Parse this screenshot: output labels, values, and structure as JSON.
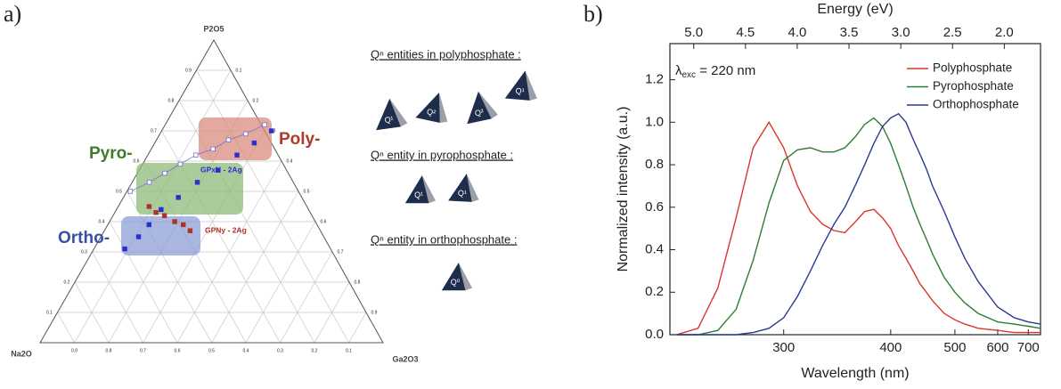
{
  "chart_data": [
    {
      "type": "ternary",
      "panel_label": "a)",
      "axes": {
        "top": "P2O5",
        "left": "Na2O",
        "right": "Ga2O3"
      },
      "ticks": [
        0.1,
        0.2,
        0.3,
        0.4,
        0.5,
        0.6,
        0.7,
        0.8,
        0.9
      ],
      "regions": [
        {
          "label": "Poly-",
          "color": "#d98c7e",
          "label_color": "#b0392a"
        },
        {
          "label": "Pyro-",
          "color": "#8cbb78",
          "label_color": "#3e7d27"
        },
        {
          "label": "Ortho-",
          "color": "#8d9fd6",
          "label_color": "#3c50a3"
        }
      ],
      "series": [
        {
          "color": "#7a6fd8",
          "marker": "open",
          "line": true,
          "P2O5": [
            0.5,
            0.53,
            0.56,
            0.59,
            0.62,
            0.64,
            0.67,
            0.69,
            0.72
          ],
          "Ga2O3": [
            0.01,
            0.05,
            0.08,
            0.11,
            0.14,
            0.18,
            0.21,
            0.25,
            0.29
          ]
        },
        {
          "name": "GPxN - 2Ag",
          "color": "#2a2fd0",
          "marker": "filled",
          "line": false,
          "P2O5": [
            0.7,
            0.66,
            0.62,
            0.57,
            0.53,
            0.48,
            0.44,
            0.39,
            0.35,
            0.31
          ],
          "Ga2O3": [
            0.32,
            0.29,
            0.26,
            0.23,
            0.19,
            0.16,
            0.13,
            0.12,
            0.11,
            0.09
          ]
        },
        {
          "name": "GPNy - 2Ag",
          "color": "#b0302a",
          "marker": "filled",
          "line": false,
          "P2O5": [
            0.45,
            0.43,
            0.42,
            0.4,
            0.39,
            0.37
          ],
          "Ga2O3": [
            0.09,
            0.12,
            0.15,
            0.19,
            0.22,
            0.25
          ]
        }
      ]
    },
    {
      "type": "line",
      "panel_label": "b)",
      "xlabel": "Wavelength (nm)",
      "x2label": "Energy (eV)",
      "ylabel": "Normalized intensity (a.u.)",
      "annotation": {
        "symbol": "λ",
        "subscript": "exc",
        "text": " = 220 nm"
      },
      "xscale": "reciprocal",
      "xlim": [
        237,
        750
      ],
      "xticks": [
        300,
        400,
        500,
        600,
        700
      ],
      "x2lim": [
        5.23,
        1.65
      ],
      "x2ticks": [
        {
          "value": 5,
          "label": "5.0"
        },
        4.5,
        {
          "value": 4,
          "label": "4.0"
        },
        3.5,
        {
          "value": 3,
          "label": "3.0"
        },
        2.5,
        {
          "value": 2,
          "label": "2.0"
        }
      ],
      "ylim": [
        0,
        1.37
      ],
      "yticks": [
        {
          "value": 0,
          "label": "0.0"
        },
        0.2,
        0.4,
        0.6,
        0.8,
        {
          "value": 1,
          "label": "1.0"
        },
        1.2
      ],
      "legend": "upper right",
      "x": [
        240,
        250,
        260,
        270,
        280,
        290,
        300,
        310,
        320,
        330,
        340,
        350,
        360,
        370,
        380,
        390,
        400,
        410,
        420,
        430,
        440,
        450,
        460,
        480,
        500,
        520,
        550,
        600,
        650,
        700,
        750
      ],
      "series": [
        {
          "name": "Polyphosphate",
          "color": "#d9352b",
          "values": [
            0,
            0.03,
            0.22,
            0.55,
            0.88,
            1.0,
            0.88,
            0.7,
            0.58,
            0.52,
            0.49,
            0.48,
            0.53,
            0.58,
            0.59,
            0.55,
            0.5,
            0.42,
            0.36,
            0.3,
            0.24,
            0.2,
            0.16,
            0.1,
            0.07,
            0.05,
            0.03,
            0.02,
            0.01,
            0.01,
            0.01
          ]
        },
        {
          "name": "Pyrophosphate",
          "color": "#2e7d36",
          "values": [
            0,
            0,
            0.02,
            0.12,
            0.35,
            0.62,
            0.82,
            0.87,
            0.88,
            0.86,
            0.86,
            0.88,
            0.93,
            0.99,
            1.02,
            0.98,
            0.9,
            0.8,
            0.7,
            0.6,
            0.52,
            0.45,
            0.38,
            0.27,
            0.2,
            0.15,
            0.1,
            0.06,
            0.05,
            0.04,
            0.03
          ]
        },
        {
          "name": "Orthophosphate",
          "color": "#2a3a8f",
          "values": [
            0,
            0,
            0,
            0,
            0.01,
            0.03,
            0.08,
            0.18,
            0.3,
            0.42,
            0.52,
            0.6,
            0.7,
            0.8,
            0.9,
            0.98,
            1.02,
            1.04,
            1.0,
            0.92,
            0.85,
            0.78,
            0.7,
            0.58,
            0.46,
            0.36,
            0.25,
            0.13,
            0.08,
            0.06,
            0.05
          ]
        }
      ]
    }
  ],
  "diagram": {
    "headings": [
      "Qⁿ entities in polyphosphate :",
      "Qⁿ entity in pyrophosphate :",
      "Qⁿ entity in orthophosphate :"
    ],
    "poly_units": [
      "Q¹",
      "Q²",
      "Q²",
      "Q¹"
    ],
    "pyro_units": [
      "Q¹",
      "Q¹"
    ],
    "ortho_units": [
      "Q⁰"
    ]
  }
}
